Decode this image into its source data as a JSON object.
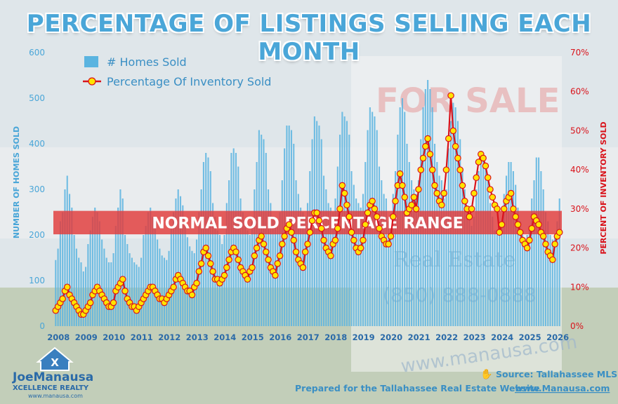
{
  "title": "PERCENTAGE OF LISTINGS SELLING EACH MONTH",
  "band_label": "NORMAL SOLD PERCENTAGE RANGE",
  "source_text": "Source: Tallahassee MLS",
  "prepared_text": "Prepared for the Tallahassee Real Estate Website",
  "website_text": "www.Manausa.com",
  "logo": {
    "name_text": "JoeManausa",
    "sub_text": "XCELLENCE REALTY",
    "url_text": "www.manausa.com"
  },
  "background_sign": {
    "for_sale": "FOR SALE",
    "real_estate": "Real Estate",
    "phone": "(850) 888-0888",
    "site": "www.manausa.com"
  },
  "colors": {
    "bars": "#5ab4e0",
    "line": "#d9131b",
    "marker_fill": "#ffe400",
    "marker_stroke": "#d9131b",
    "band": "#e23a3a",
    "axis_left": "#4aa6d8",
    "axis_right": "#d9131b"
  },
  "chart_data": {
    "type": "bar+line",
    "x_tick_labels": [
      "2008",
      "2009",
      "2010",
      "2011",
      "2012",
      "2013",
      "2014",
      "2015",
      "2016",
      "2017",
      "2018",
      "2019",
      "2020",
      "2021",
      "2022",
      "2023",
      "2024",
      "2025",
      "2026"
    ],
    "left_axis": {
      "label": "NUMBER OF HOMES SOLD",
      "ticks": [
        0,
        100,
        200,
        300,
        400,
        500,
        600
      ],
      "range": [
        0,
        600
      ]
    },
    "right_axis": {
      "label": "PERCENT OF INVENTORY SOLD",
      "ticks": [
        "0%",
        "10%",
        "20%",
        "30%",
        "40%",
        "50%",
        "60%",
        "70%"
      ],
      "range": [
        0,
        70
      ]
    },
    "reference_band": {
      "label": "NORMAL SOLD PERCENTAGE RANGE",
      "range_percent": [
        23.5,
        29.5
      ]
    },
    "series": [
      {
        "name": "# Homes Sold",
        "type": "bar",
        "axis": "left",
        "period": "monthly from 2008 through early 2026",
        "annual_pattern": [
          [
            2008,
            [
              145,
              170,
              230,
              250,
              300,
              330,
              290,
              260,
              200,
              170,
              150,
              140
            ]
          ],
          [
            2009,
            [
              120,
              130,
              180,
              210,
              240,
              260,
              250,
              230,
              190,
              170,
              150,
              140
            ]
          ],
          [
            2010,
            [
              140,
              160,
              220,
              260,
              300,
              280,
              200,
              180,
              160,
              150,
              140,
              135
            ]
          ],
          [
            2011,
            [
              130,
              150,
              200,
              220,
              250,
              260,
              240,
              220,
              190,
              170,
              155,
              150
            ]
          ],
          [
            2012,
            [
              145,
              165,
              220,
              250,
              280,
              300,
              285,
              265,
              220,
              195,
              175,
              165
            ]
          ],
          [
            2013,
            [
              160,
              190,
              250,
              300,
              360,
              380,
              370,
              340,
              270,
              240,
              210,
              200
            ]
          ],
          [
            2014,
            [
              180,
              200,
              270,
              320,
              380,
              390,
              380,
              350,
              280,
              250,
              220,
              210
            ]
          ],
          [
            2015,
            [
              200,
              230,
              300,
              360,
              430,
              420,
              410,
              380,
              300,
              270,
              240,
              230
            ]
          ],
          [
            2016,
            [
              220,
              250,
              320,
              390,
              440,
              440,
              430,
              400,
              320,
              290,
              260,
              250
            ]
          ],
          [
            2017,
            [
              240,
              270,
              340,
              410,
              460,
              450,
              440,
              410,
              330,
              300,
              270,
              260
            ]
          ],
          [
            2018,
            [
              250,
              280,
              350,
              420,
              470,
              460,
              450,
              420,
              340,
              310,
              280,
              270
            ]
          ],
          [
            2019,
            [
              260,
              290,
              360,
              430,
              480,
              470,
              460,
              430,
              350,
              320,
              290,
              280
            ]
          ],
          [
            2020,
            [
              230,
              240,
              290,
              340,
              420,
              480,
              500,
              470,
              400,
              360,
              320,
              300
            ]
          ],
          [
            2021,
            [
              290,
              320,
              410,
              480,
              520,
              540,
              520,
              480,
              400,
              360,
              330,
              320
            ]
          ],
          [
            2022,
            [
              280,
              300,
              390,
              450,
              490,
              480,
              450,
              410,
              340,
              300,
              260,
              240
            ]
          ],
          [
            2023,
            [
              220,
              240,
              300,
              340,
              370,
              370,
              350,
              320,
              270,
              240,
              210,
              200
            ]
          ],
          [
            2024,
            [
              210,
              230,
              290,
              330,
              360,
              360,
              340,
              310,
              260,
              230,
              200,
              190
            ]
          ],
          [
            2025,
            [
              200,
              220,
              280,
              320,
              370,
              370,
              340,
              300,
              250,
              230,
              200,
              190
            ]
          ],
          [
            2026,
            [
              200,
              230,
              280
            ]
          ]
        ]
      },
      {
        "name": "Percentage Of Inventory Sold",
        "type": "line",
        "axis": "right",
        "values_percent_by_year": [
          [
            2008,
            [
              4,
              5,
              6,
              7,
              9,
              10,
              8,
              7,
              6,
              5,
              4,
              3
            ]
          ],
          [
            2009,
            [
              3,
              4,
              5,
              6,
              8,
              9,
              10,
              9,
              8,
              7,
              6,
              5
            ]
          ],
          [
            2010,
            [
              5,
              6,
              9,
              10,
              11,
              12,
              9,
              7,
              6,
              5,
              5,
              4
            ]
          ],
          [
            2011,
            [
              5,
              6,
              7,
              8,
              9,
              10,
              10,
              9,
              8,
              7,
              7,
              6
            ]
          ],
          [
            2012,
            [
              7,
              8,
              9,
              10,
              12,
              13,
              12,
              11,
              10,
              9,
              9,
              8
            ]
          ],
          [
            2013,
            [
              10,
              11,
              14,
              16,
              19,
              20,
              18,
              16,
              14,
              12,
              12,
              11
            ]
          ],
          [
            2014,
            [
              12,
              13,
              15,
              17,
              19,
              20,
              19,
              17,
              15,
              14,
              13,
              12
            ]
          ],
          [
            2015,
            [
              14,
              15,
              18,
              20,
              22,
              23,
              21,
              19,
              17,
              15,
              14,
              13
            ]
          ],
          [
            2016,
            [
              16,
              18,
              21,
              23,
              25,
              26,
              24,
              22,
              19,
              17,
              16,
              15
            ]
          ],
          [
            2017,
            [
              19,
              21,
              24,
              27,
              29,
              29,
              27,
              25,
              22,
              20,
              19,
              18
            ]
          ],
          [
            2018,
            [
              21,
              22,
              25,
              30,
              36,
              34,
              31,
              28,
              24,
              22,
              20,
              19
            ]
          ],
          [
            2019,
            [
              20,
              22,
              26,
              29,
              31,
              32,
              30,
              28,
              25,
              23,
              22,
              21
            ]
          ],
          [
            2020,
            [
              21,
              23,
              28,
              32,
              36,
              39,
              36,
              33,
              29,
              30,
              31,
              33
            ]
          ],
          [
            2021,
            [
              30,
              35,
              40,
              43,
              46,
              48,
              44,
              40,
              36,
              34,
              32,
              31
            ]
          ],
          [
            2022,
            [
              34,
              40,
              48,
              59,
              50,
              46,
              43,
              40,
              36,
              32,
              30,
              28
            ]
          ],
          [
            2023,
            [
              30,
              34,
              38,
              42,
              44,
              43,
              41,
              38,
              35,
              33,
              31,
              30
            ]
          ],
          [
            2024,
            [
              24,
              26,
              30,
              32,
              33,
              34,
              30,
              28,
              26,
              24,
              22,
              21
            ]
          ],
          [
            2025,
            [
              20,
              22,
              25,
              28,
              27,
              26,
              24,
              23,
              21,
              19,
              18,
              17
            ]
          ],
          [
            2026,
            [
              21,
              23,
              24
            ]
          ]
        ]
      }
    ]
  }
}
